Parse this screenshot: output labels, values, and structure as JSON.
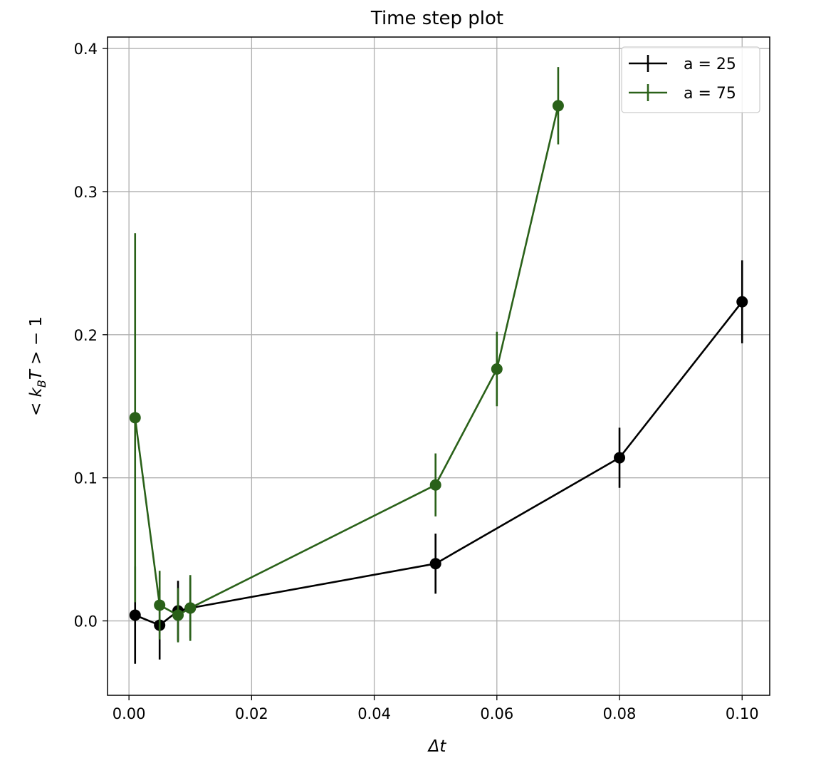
{
  "chart_data": {
    "type": "line",
    "title": "Time step plot",
    "xlabel": "Δt",
    "ylabel": "< k_B T > − 1",
    "ylabel_parts": {
      "lt": "< ",
      "k": "k",
      "sub": "B",
      "T": "T",
      "rest": " > − 1"
    },
    "xlim": [
      -0.0035,
      0.1045
    ],
    "ylim": [
      -0.052,
      0.408
    ],
    "grid": true,
    "legend_position": "top-right",
    "x_ticks": [
      {
        "value": 0.0,
        "label": "0.00"
      },
      {
        "value": 0.02,
        "label": "0.02"
      },
      {
        "value": 0.04,
        "label": "0.04"
      },
      {
        "value": 0.06,
        "label": "0.06"
      },
      {
        "value": 0.08,
        "label": "0.08"
      },
      {
        "value": 0.1,
        "label": "0.10"
      }
    ],
    "y_ticks": [
      {
        "value": 0.0,
        "label": "0.0"
      },
      {
        "value": 0.1,
        "label": "0.1"
      },
      {
        "value": 0.2,
        "label": "0.2"
      },
      {
        "value": 0.3,
        "label": "0.3"
      },
      {
        "value": 0.4,
        "label": "0.4"
      }
    ],
    "series": [
      {
        "name": "a = 25",
        "color": "#000000",
        "x": [
          0.001,
          0.005,
          0.008,
          0.01,
          0.05,
          0.08,
          0.1
        ],
        "y": [
          0.004,
          -0.003,
          0.007,
          0.009,
          0.04,
          0.114,
          0.223
        ],
        "yerr": [
          0.034,
          0.024,
          0.021,
          0.021,
          0.021,
          0.021,
          0.029
        ]
      },
      {
        "name": "a = 75",
        "color": "#2a6119",
        "x": [
          0.001,
          0.005,
          0.008,
          0.01,
          0.05,
          0.06,
          0.07
        ],
        "y": [
          0.142,
          0.011,
          0.004,
          0.009,
          0.095,
          0.176,
          0.36
        ],
        "yerr": [
          0.129,
          0.024,
          0.019,
          0.023,
          0.022,
          0.026,
          0.027
        ]
      }
    ]
  }
}
